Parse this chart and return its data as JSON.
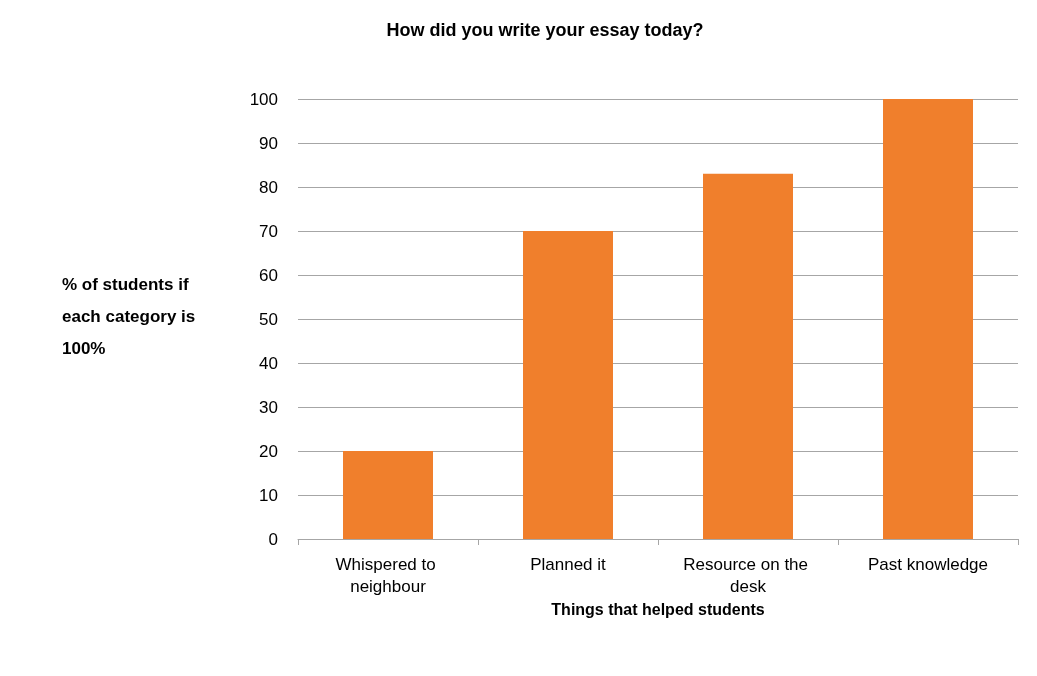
{
  "chart_data": {
    "type": "bar",
    "title": "How did you write your essay today?",
    "xlabel": "Things that helped students",
    "ylabel": "% of students if each category is 100%",
    "categories": [
      "Whispered to neighbour",
      "Planned it",
      "Resource on the desk",
      "Past knowledge"
    ],
    "values": [
      20,
      70,
      83,
      100
    ],
    "color": "#f07f2c",
    "ylim": [
      0,
      100
    ],
    "yticks": [
      0,
      10,
      20,
      30,
      40,
      50,
      60,
      70,
      80,
      90,
      100
    ],
    "grid": "y"
  }
}
